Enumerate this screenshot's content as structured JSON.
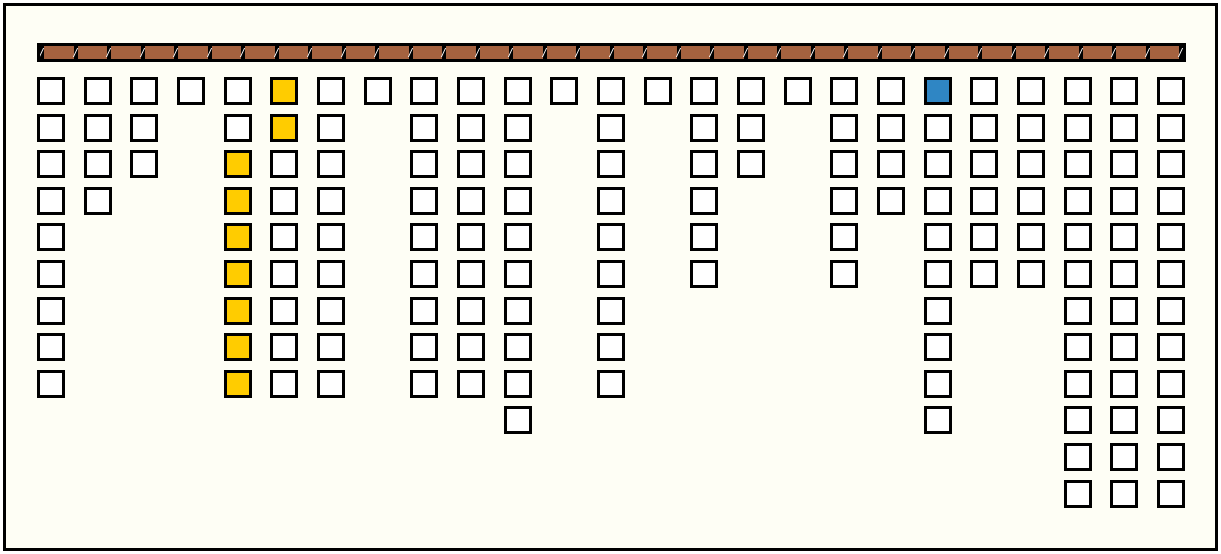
{
  "colors": {
    "bar": "#a5623f",
    "empty": "#ffffff",
    "yellow": "#ffcc00",
    "blue": "#2f86c4",
    "background": "#fefef5"
  },
  "columns": [
    {
      "count": 9,
      "colored": {}
    },
    {
      "count": 4,
      "colored": {}
    },
    {
      "count": 3,
      "colored": {}
    },
    {
      "count": 1,
      "colored": {}
    },
    {
      "count": 9,
      "colored": {
        "2": "yellow",
        "3": "yellow",
        "4": "yellow",
        "5": "yellow",
        "6": "yellow",
        "7": "yellow",
        "8": "yellow"
      }
    },
    {
      "count": 9,
      "colored": {
        "0": "yellow",
        "1": "yellow"
      }
    },
    {
      "count": 9,
      "colored": {}
    },
    {
      "count": 1,
      "colored": {}
    },
    {
      "count": 9,
      "colored": {}
    },
    {
      "count": 9,
      "colored": {}
    },
    {
      "count": 10,
      "colored": {}
    },
    {
      "count": 1,
      "colored": {}
    },
    {
      "count": 9,
      "colored": {}
    },
    {
      "count": 1,
      "colored": {}
    },
    {
      "count": 6,
      "colored": {}
    },
    {
      "count": 3,
      "colored": {}
    },
    {
      "count": 1,
      "colored": {}
    },
    {
      "count": 6,
      "colored": {}
    },
    {
      "count": 4,
      "colored": {}
    },
    {
      "count": 10,
      "colored": {
        "0": "blue"
      }
    },
    {
      "count": 6,
      "colored": {}
    },
    {
      "count": 6,
      "colored": {}
    },
    {
      "count": 12,
      "colored": {}
    },
    {
      "count": 12,
      "colored": {}
    },
    {
      "count": 12,
      "colored": {}
    }
  ]
}
